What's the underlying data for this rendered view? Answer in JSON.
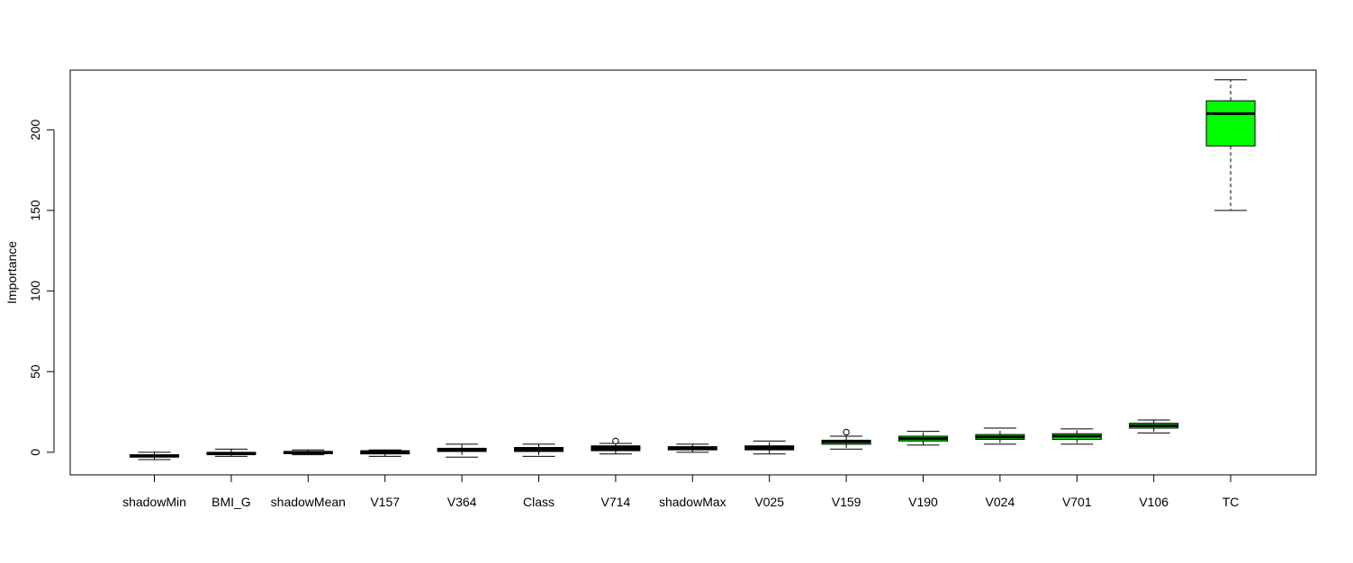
{
  "chart_data": {
    "type": "boxplot",
    "title": "",
    "xlabel": "",
    "ylabel": "Importance",
    "ylim": [
      -14,
      237
    ],
    "yticks": [
      0,
      50,
      100,
      150,
      200
    ],
    "grid": false,
    "legend": "none",
    "colors": {
      "shadow": "#000000",
      "confirmed": "#00ff00",
      "outline": "#000000"
    },
    "categories": [
      "shadowMin",
      "BMI_G",
      "shadowMean",
      "V157",
      "V364",
      "Class",
      "V714",
      "shadowMax",
      "V025",
      "V159",
      "V190",
      "V024",
      "V701",
      "V106",
      "TC"
    ],
    "boxes": [
      {
        "name": "shadowMin",
        "fill": "shadow",
        "whisker_low": -4.5,
        "q1": -3.0,
        "median": -2.3,
        "q3": -1.5,
        "whisker_high": 0.0,
        "outliers": []
      },
      {
        "name": "BMI_G",
        "fill": "shadow",
        "whisker_low": -2.5,
        "q1": -1.5,
        "median": -0.8,
        "q3": 0.0,
        "whisker_high": 2.0,
        "outliers": []
      },
      {
        "name": "shadowMean",
        "fill": "shadow",
        "whisker_low": -1.5,
        "q1": -0.5,
        "median": 0.0,
        "q3": 0.5,
        "whisker_high": 1.5,
        "outliers": []
      },
      {
        "name": "V157",
        "fill": "shadow",
        "whisker_low": -2.5,
        "q1": -1.0,
        "median": 0.0,
        "q3": 1.0,
        "whisker_high": 1.5,
        "outliers": []
      },
      {
        "name": "V364",
        "fill": "shadow",
        "whisker_low": -3.0,
        "q1": 0.5,
        "median": 1.5,
        "q3": 2.5,
        "whisker_high": 5.0,
        "outliers": []
      },
      {
        "name": "Class",
        "fill": "shadow",
        "whisker_low": -2.5,
        "q1": 0.5,
        "median": 1.5,
        "q3": 3.0,
        "whisker_high": 5.0,
        "outliers": []
      },
      {
        "name": "V714",
        "fill": "shadow",
        "whisker_low": -1.0,
        "q1": 1.0,
        "median": 2.0,
        "q3": 4.0,
        "whisker_high": 5.5,
        "outliers": [
          7.0
        ]
      },
      {
        "name": "shadowMax",
        "fill": "shadow",
        "whisker_low": 0.0,
        "q1": 1.5,
        "median": 2.5,
        "q3": 3.5,
        "whisker_high": 5.0,
        "outliers": []
      },
      {
        "name": "V025",
        "fill": "shadow",
        "whisker_low": -1.0,
        "q1": 1.5,
        "median": 3.0,
        "q3": 4.0,
        "whisker_high": 7.0,
        "outliers": []
      },
      {
        "name": "V159",
        "fill": "confirmed",
        "whisker_low": 2.0,
        "q1": 5.0,
        "median": 6.5,
        "q3": 7.5,
        "whisker_high": 10.0,
        "outliers": [
          12.5
        ]
      },
      {
        "name": "V190",
        "fill": "confirmed",
        "whisker_low": 4.5,
        "q1": 7.0,
        "median": 8.5,
        "q3": 10.0,
        "whisker_high": 13.0,
        "outliers": []
      },
      {
        "name": "V024",
        "fill": "confirmed",
        "whisker_low": 5.0,
        "q1": 8.0,
        "median": 9.5,
        "q3": 11.0,
        "whisker_high": 15.0,
        "outliers": []
      },
      {
        "name": "V701",
        "fill": "confirmed",
        "whisker_low": 5.0,
        "q1": 8.0,
        "median": 10.0,
        "q3": 11.5,
        "whisker_high": 14.5,
        "outliers": []
      },
      {
        "name": "V106",
        "fill": "confirmed",
        "whisker_low": 12.0,
        "q1": 15.0,
        "median": 16.5,
        "q3": 18.0,
        "whisker_high": 20.0,
        "outliers": []
      },
      {
        "name": "TC",
        "fill": "confirmed",
        "whisker_low": 150.0,
        "q1": 190.0,
        "median": 210.0,
        "q3": 218.0,
        "whisker_high": 231.0,
        "outliers": []
      }
    ]
  }
}
